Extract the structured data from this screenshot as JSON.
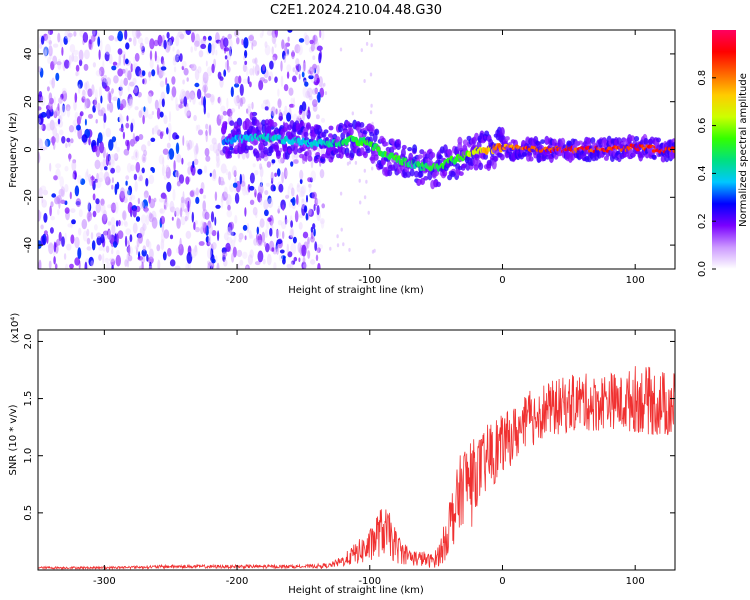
{
  "title": "C2E1.2024.210.04.48.G30",
  "colors": {
    "snr_line": "#f03030",
    "spectrogram_base": "#7a00ff",
    "colorbar_stops": [
      "#ffffff",
      "#cc99ff",
      "#7a00ff",
      "#0000ff",
      "#00c8ff",
      "#00e080",
      "#33ff00",
      "#ccff00",
      "#ffcc00",
      "#ff6600",
      "#ff0000",
      "#ff0060"
    ]
  },
  "chart_data": [
    {
      "type": "heatmap",
      "xlabel": "Height of straight line (km)",
      "ylabel": "Frequency (Hz)",
      "xlim": [
        -350,
        130
      ],
      "ylim": [
        -50,
        50
      ],
      "xticks": [
        -300,
        -200,
        -100,
        0,
        100
      ],
      "xtick_labels": [
        "-300",
        "-200",
        "-100",
        "0",
        "100"
      ],
      "yticks": [
        -40,
        -20,
        0,
        20,
        40
      ],
      "ytick_labels": [
        "-40",
        "-20",
        "0",
        "20",
        "40"
      ],
      "grid": false,
      "colorbar": {
        "label": "Normalized spectral amplitude",
        "range": [
          0,
          1
        ],
        "ticks": [
          0,
          0.2,
          0.4,
          0.6,
          0.8
        ],
        "tick_labels": [
          "0.0",
          "0.2",
          "0.4",
          "0.6",
          "0.8"
        ]
      },
      "noise_region_x": [
        -350,
        -135
      ],
      "ridge": {
        "x": [
          -210,
          -180,
          -150,
          -130,
          -115,
          -100,
          -90,
          -80,
          -70,
          -60,
          -50,
          -45,
          -40,
          -30,
          -20,
          -10,
          0,
          20,
          40,
          60,
          80,
          100,
          120,
          130
        ],
        "freq": [
          4,
          5,
          3,
          2,
          4,
          3,
          -2,
          -4,
          -6,
          -7,
          -8,
          -7,
          -5,
          -3,
          -1,
          0,
          1,
          0,
          0,
          0,
          0,
          1,
          0,
          0
        ],
        "amplitude": [
          0.35,
          0.45,
          0.4,
          0.45,
          0.55,
          0.55,
          0.55,
          0.55,
          0.5,
          0.5,
          0.55,
          0.55,
          0.55,
          0.6,
          0.7,
          0.8,
          0.85,
          0.92,
          0.95,
          0.95,
          0.95,
          0.95,
          0.95,
          0.95
        ]
      }
    },
    {
      "type": "line",
      "xlabel": "Height of straight line (km)",
      "ylabel": "SNR (10 * v/v)",
      "y_multiplier_label": "(x10⁴)",
      "xlim": [
        -350,
        130
      ],
      "ylim": [
        0,
        2.1
      ],
      "xticks": [
        -300,
        -200,
        -100,
        0,
        100
      ],
      "xtick_labels": [
        "-300",
        "-200",
        "-100",
        "0",
        "100"
      ],
      "yticks": [
        0.5,
        1.0,
        1.5,
        2.0
      ],
      "ytick_labels": [
        "0.5",
        "1.0",
        "1.5",
        "2.0"
      ],
      "grid": false,
      "series": [
        {
          "x": [
            -350,
            -300,
            -250,
            -200,
            -150,
            -130,
            -120,
            -110,
            -100,
            -95,
            -90,
            -85,
            -80,
            -75,
            -70,
            -65,
            -60,
            -55,
            -50,
            -45,
            -40,
            -35,
            -30,
            -25,
            -20,
            -15,
            -10,
            -5,
            0,
            5,
            10,
            15,
            20,
            25,
            30,
            35,
            40,
            50,
            60,
            70,
            80,
            90,
            100,
            110,
            120,
            130
          ],
          "y": [
            0.02,
            0.02,
            0.03,
            0.03,
            0.03,
            0.04,
            0.08,
            0.15,
            0.2,
            0.3,
            0.35,
            0.3,
            0.2,
            0.15,
            0.12,
            0.1,
            0.1,
            0.08,
            0.1,
            0.2,
            0.4,
            0.55,
            0.75,
            0.8,
            0.85,
            0.9,
            1.0,
            1.05,
            1.1,
            1.15,
            1.2,
            1.25,
            1.3,
            1.35,
            1.4,
            1.4,
            1.42,
            1.45,
            1.48,
            1.45,
            1.5,
            1.45,
            1.5,
            1.48,
            1.45,
            1.45
          ],
          "spread": [
            0.01,
            0.01,
            0.015,
            0.015,
            0.015,
            0.02,
            0.05,
            0.1,
            0.15,
            0.2,
            0.22,
            0.2,
            0.15,
            0.1,
            0.08,
            0.07,
            0.07,
            0.06,
            0.08,
            0.15,
            0.25,
            0.3,
            0.35,
            0.35,
            0.3,
            0.3,
            0.3,
            0.3,
            0.25,
            0.25,
            0.25,
            0.25,
            0.25,
            0.25,
            0.25,
            0.25,
            0.25,
            0.25,
            0.25,
            0.25,
            0.25,
            0.25,
            0.3,
            0.3,
            0.3,
            0.3
          ]
        }
      ]
    }
  ]
}
